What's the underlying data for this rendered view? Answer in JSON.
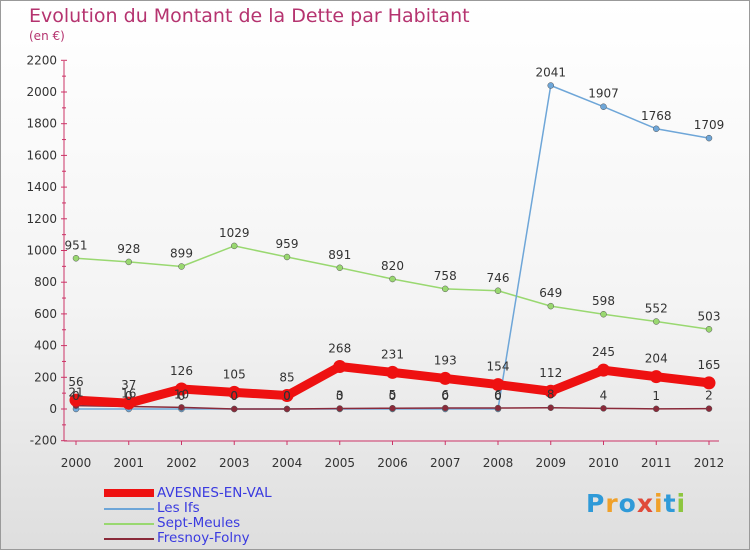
{
  "title": "Evolution du Montant de la Dette par Habitant",
  "subtitle": "(en €)",
  "brand": {
    "letters": [
      {
        "ch": "P",
        "color": "#2f9ad8"
      },
      {
        "ch": "r",
        "color": "#f0a12a"
      },
      {
        "ch": "o",
        "color": "#2f9ad8"
      },
      {
        "ch": "x",
        "color": "#e04a3a"
      },
      {
        "ch": "i",
        "color": "#f0a12a"
      },
      {
        "ch": "t",
        "color": "#2f9ad8"
      },
      {
        "ch": "i",
        "color": "#8dc63f"
      }
    ]
  },
  "chart_data": {
    "type": "line",
    "x": [
      "2000",
      "2001",
      "2002",
      "2003",
      "2004",
      "2005",
      "2006",
      "2007",
      "2008",
      "2009",
      "2010",
      "2011",
      "2012"
    ],
    "ylim": [
      -200,
      2200
    ],
    "yticks": [
      -200,
      0,
      200,
      400,
      600,
      800,
      1000,
      1200,
      1400,
      1600,
      1800,
      2000,
      2200
    ],
    "grid": false,
    "legend_position": "bottom-left",
    "series": [
      {
        "name": "AVESNES-EN-VAL",
        "color": "#ee1111",
        "values": [
          56,
          37,
          126,
          105,
          85,
          268,
          231,
          193,
          154,
          112,
          245,
          204,
          165
        ],
        "labels": [
          "56",
          "37",
          "126",
          "105",
          "85",
          "268",
          "231",
          "193",
          "154",
          "112",
          "245",
          "204",
          "165"
        ]
      },
      {
        "name": "Les Ifs",
        "color": "#6ea6d8",
        "values": [
          0,
          0,
          0,
          0,
          0,
          0,
          0,
          0,
          0,
          2041,
          1907,
          1768,
          1709
        ],
        "labels": [
          "0",
          "0",
          "0",
          "0",
          "0",
          "0",
          "0",
          "0",
          "0",
          "2041",
          "1907",
          "1768",
          "1709"
        ]
      },
      {
        "name": "Sept-Meules",
        "color": "#99d870",
        "values": [
          951,
          928,
          899,
          1029,
          959,
          891,
          820,
          758,
          746,
          649,
          598,
          552,
          503
        ],
        "labels": [
          "951",
          "928",
          "899",
          "1029",
          "959",
          "891",
          "820",
          "758",
          "746",
          "649",
          "598",
          "552",
          "503"
        ]
      },
      {
        "name": "Fresnoy-Folny",
        "color": "#8a2a3a",
        "values": [
          21,
          16,
          10,
          0,
          0,
          3,
          5,
          6,
          6,
          8,
          4,
          1,
          2
        ],
        "labels": [
          "21",
          "16",
          "10",
          "0",
          "0",
          "3",
          "5",
          "6",
          "6",
          "8",
          "4",
          "1",
          "2"
        ]
      }
    ]
  }
}
